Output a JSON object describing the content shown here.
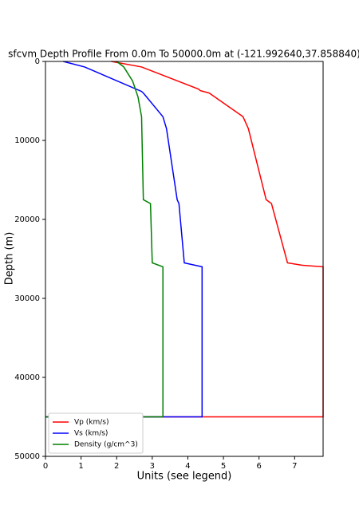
{
  "chart_data": {
    "type": "line",
    "title": "sfcvm Depth Profile From 0.0m To 50000.0m at (-121.992640,37.858840)",
    "x_label": "Units (see legend)",
    "y_label": "Depth (m)",
    "xlim": [
      0,
      7.8
    ],
    "ylim": [
      50000,
      0
    ],
    "y_inverted": true,
    "xticks": [
      0,
      1,
      2,
      3,
      4,
      5,
      6,
      7
    ],
    "yticks": [
      0,
      10000,
      20000,
      30000,
      40000,
      50000
    ],
    "grid": false,
    "legend": "lower left",
    "series": [
      {
        "name": "Vp (km/s)",
        "color": "#ff0000",
        "x": [
          1.85,
          2.7,
          4.3,
          4.35,
          4.6,
          5.55,
          5.7,
          6.2,
          6.35,
          6.8,
          7.2,
          7.8,
          7.8,
          0
        ],
        "y": [
          0,
          700,
          3500,
          3700,
          4000,
          7000,
          8500,
          17500,
          18000,
          25500,
          25800,
          26000,
          45000,
          45000
        ]
      },
      {
        "name": "Vs (km/s)",
        "color": "#0000ff",
        "x": [
          0.5,
          1.1,
          2.7,
          2.75,
          3.3,
          3.4,
          3.7,
          3.75,
          3.9,
          4.4,
          4.4,
          0
        ],
        "y": [
          0,
          700,
          3800,
          4000,
          7000,
          8500,
          17500,
          18000,
          25500,
          26000,
          45000,
          45000
        ]
      },
      {
        "name": "Density (g/cm^3)",
        "color": "#008000",
        "x": [
          2.0,
          2.2,
          2.45,
          2.6,
          2.7,
          2.75,
          2.95,
          3.0,
          3.3,
          3.3,
          0
        ],
        "y": [
          0,
          700,
          2500,
          4500,
          7000,
          17500,
          18000,
          25500,
          26000,
          45000,
          45000
        ]
      }
    ]
  }
}
